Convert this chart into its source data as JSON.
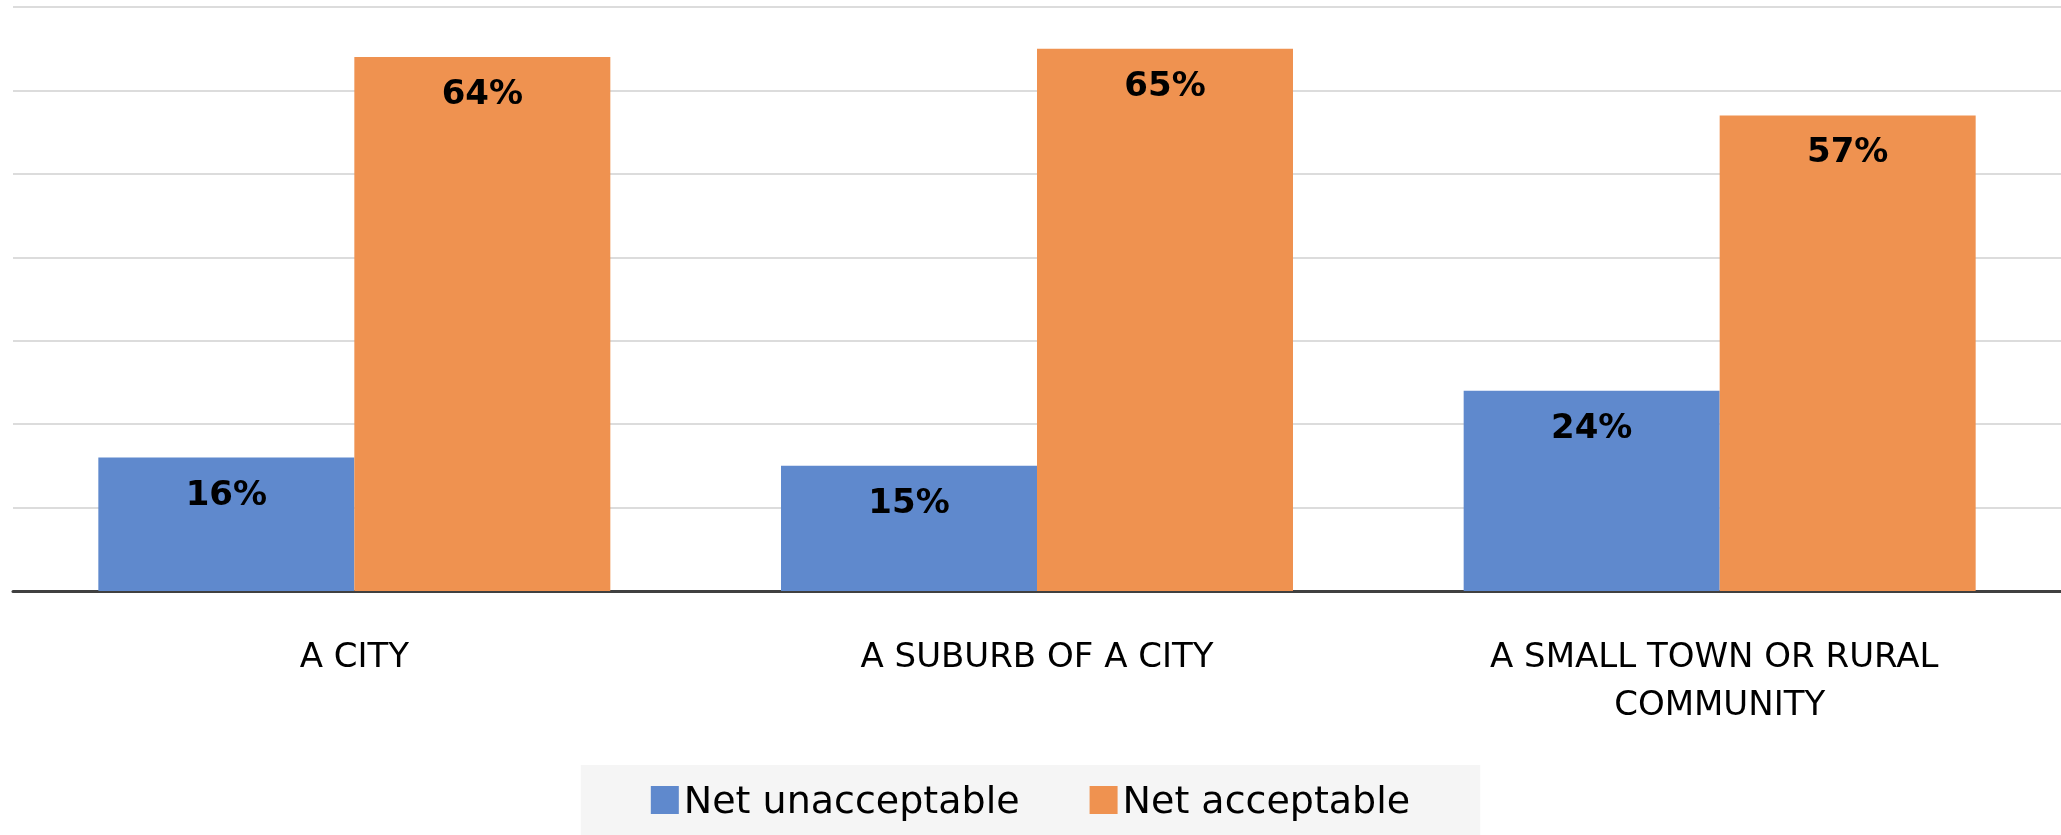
{
  "chart_data": {
    "type": "bar",
    "categories": [
      "A CITY",
      "A SUBURB OF A CITY",
      "A SMALL TOWN OR RURAL COMMUNITY"
    ],
    "series": [
      {
        "name": "Net unacceptable",
        "color": "#5f89cd",
        "values": [
          16,
          15,
          24
        ],
        "value_labels": [
          "16%",
          "15%",
          "24%"
        ]
      },
      {
        "name": "Net acceptable",
        "color": "#ef9250",
        "values": [
          64,
          65,
          57
        ],
        "value_labels": [
          "64%",
          "65%",
          "57%"
        ]
      }
    ],
    "grid": "y",
    "legend": "bottom",
    "tick_labels": "x"
  }
}
